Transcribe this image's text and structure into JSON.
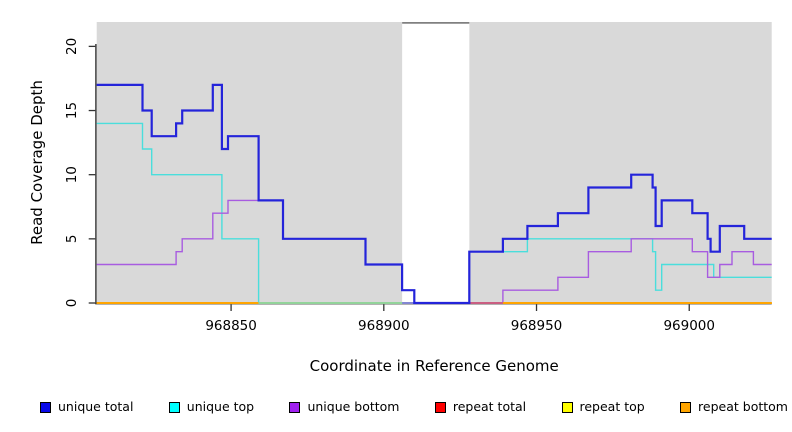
{
  "chart_data": {
    "type": "line",
    "subtype": "step-coverage",
    "title": "",
    "xlabel": "Coordinate in Reference Genome",
    "ylabel": "Read Coverage Depth",
    "x_range": [
      968806,
      969027
    ],
    "y_range": [
      0,
      21.9
    ],
    "x_ticks": [
      968850,
      968900,
      968950,
      969000
    ],
    "y_ticks": [
      0,
      5,
      10,
      15,
      20
    ],
    "grid": "off",
    "plot_bg": "#d9d9d9",
    "gap_band": {
      "start": 968906,
      "end": 968928,
      "fill": "#ffffff",
      "top_border": "#808080"
    },
    "legend_position": "bottom",
    "series": [
      {
        "name": "unique total",
        "line_color": "#2424da",
        "legend_color": "#0808e8",
        "width": 2.2,
        "steps": [
          [
            968806,
            17
          ],
          [
            968821,
            15
          ],
          [
            968824,
            13
          ],
          [
            968832,
            14
          ],
          [
            968834,
            15
          ],
          [
            968844,
            17
          ],
          [
            968847,
            12
          ],
          [
            968849,
            13
          ],
          [
            968859,
            8
          ],
          [
            968867,
            5
          ],
          [
            968894,
            3
          ],
          [
            968906,
            1
          ],
          [
            968910,
            0
          ],
          [
            968928,
            4
          ],
          [
            968939,
            5
          ],
          [
            968947,
            6
          ],
          [
            968957,
            7
          ],
          [
            968967,
            9
          ],
          [
            968981,
            10
          ],
          [
            968988,
            9
          ],
          [
            968989,
            6
          ],
          [
            968991,
            8
          ],
          [
            969001,
            7
          ],
          [
            969006,
            5
          ],
          [
            969007,
            4
          ],
          [
            969010,
            6
          ],
          [
            969018,
            5
          ]
        ],
        "x_end": 969027
      },
      {
        "name": "unique top",
        "line_color": "#4adedc",
        "legend_color": "#00ffff",
        "width": 1.4,
        "steps": [
          [
            968806,
            14
          ],
          [
            968821,
            12
          ],
          [
            968824,
            10
          ],
          [
            968847,
            5
          ],
          [
            968859,
            0
          ],
          [
            968928,
            4
          ],
          [
            968947,
            5
          ],
          [
            968988,
            4
          ],
          [
            968989,
            1
          ],
          [
            968991,
            3
          ],
          [
            969008,
            2
          ]
        ],
        "x_end": 969027
      },
      {
        "name": "unique bottom",
        "line_color": "#a85ce0",
        "legend_color": "#a020f0",
        "width": 1.4,
        "steps": [
          [
            968806,
            3
          ],
          [
            968832,
            4
          ],
          [
            968834,
            5
          ],
          [
            968844,
            7
          ],
          [
            968849,
            8
          ],
          [
            968867,
            5
          ],
          [
            968894,
            3
          ],
          [
            968906,
            1
          ],
          [
            968910,
            0
          ],
          [
            968939,
            1
          ],
          [
            968957,
            2
          ],
          [
            968967,
            4
          ],
          [
            968981,
            5
          ],
          [
            969001,
            4
          ],
          [
            969006,
            2
          ],
          [
            969010,
            3
          ],
          [
            969014,
            4
          ],
          [
            969021,
            3
          ]
        ],
        "x_end": 969027
      },
      {
        "name": "repeat total",
        "line_color": "#ff0000",
        "legend_color": "#ff0000",
        "width": 1.4,
        "steps": [
          [
            968806,
            0
          ]
        ],
        "x_end": 969027
      },
      {
        "name": "repeat top",
        "line_color": "#ffff00",
        "legend_color": "#ffff00",
        "width": 1.4,
        "steps": [
          [
            968806,
            0
          ]
        ],
        "x_end": 969027
      },
      {
        "name": "repeat bottom",
        "line_color": "#ffa500",
        "legend_color": "#ffa500",
        "width": 1.8,
        "steps": [
          [
            968806,
            0
          ]
        ],
        "x_end": 969027
      }
    ],
    "baseline_overlap_segments": [
      {
        "from": 968806,
        "to": 968859,
        "color": "#ffa500",
        "meaning": "repeat lines at 0"
      },
      {
        "from": 968859,
        "to": 968906,
        "color": "#90d6a0",
        "meaning": "unique top at 0 over repeats"
      },
      {
        "from": 968906,
        "to": 968910,
        "color": "#8080dd",
        "meaning": "unique bottom at 0 in gap"
      },
      {
        "from": 968928,
        "to": 968939,
        "color": "#c85a84",
        "meaning": "unique bottom at 0 over repeats"
      },
      {
        "from": 968939,
        "to": 969027,
        "color": "#ffa500",
        "meaning": "repeat lines at 0"
      }
    ],
    "legend": [
      {
        "label": "unique total"
      },
      {
        "label": "unique top"
      },
      {
        "label": "unique bottom"
      },
      {
        "label": "repeat total"
      },
      {
        "label": "repeat top"
      },
      {
        "label": "repeat bottom"
      }
    ]
  },
  "axis_style": {
    "tick_color": "#333333",
    "axis_line_color": "#333333",
    "text_color": "#000000"
  }
}
